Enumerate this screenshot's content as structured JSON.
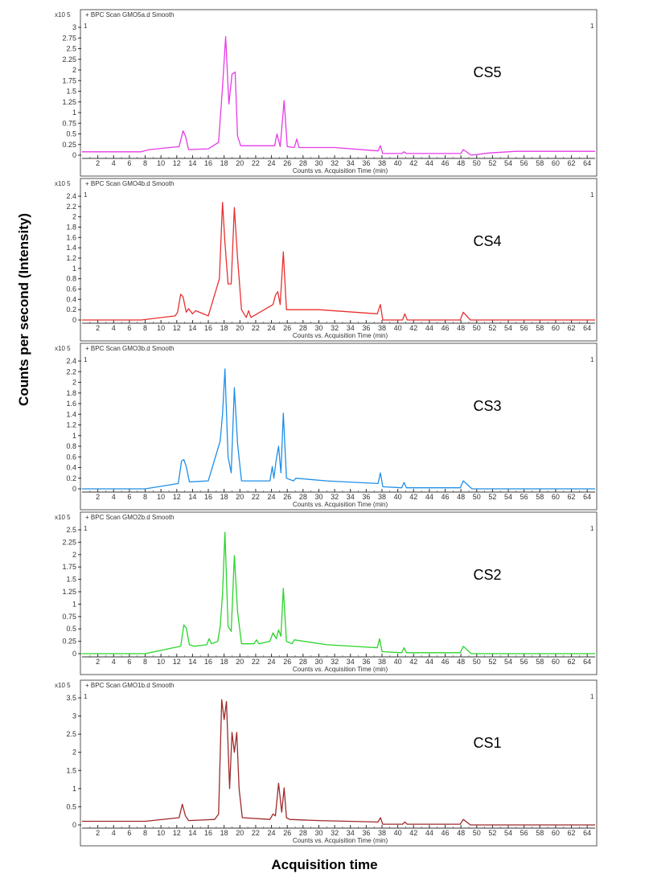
{
  "figure": {
    "y_axis_label": "Counts per second (Intensity)",
    "x_axis_label": "Acquisition time"
  },
  "chart_data": [
    {
      "type": "line",
      "title": "BPC Scan GMO5a.d  Smooth",
      "sample_label": "CS5",
      "corner_label": "1",
      "scale_label": "x10 5",
      "color": "#e63be6",
      "xlabel": "Counts vs. Acquisition Time (min)",
      "xlim": [
        0,
        65
      ],
      "ylim": [
        0,
        3
      ],
      "yticks": [
        0,
        0.25,
        0.5,
        0.75,
        1,
        1.25,
        1.5,
        1.75,
        2,
        2.25,
        2.5,
        2.75,
        3
      ],
      "ytick_labels": [
        "0",
        "0.25",
        "0.5",
        "0.75",
        "1",
        "1.25",
        "1.5",
        "1.75",
        "2",
        "2.25",
        "2.5",
        "2.75",
        "3"
      ],
      "xticks": [
        2,
        4,
        6,
        8,
        10,
        12,
        14,
        16,
        18,
        20,
        22,
        24,
        26,
        28,
        30,
        32,
        34,
        36,
        38,
        40,
        42,
        44,
        46,
        48,
        50,
        52,
        54,
        56,
        58,
        60,
        62,
        64
      ],
      "x": [
        0,
        7.5,
        8.5,
        12.3,
        12.8,
        13.1,
        13.5,
        16,
        17.3,
        17.8,
        18.2,
        18.6,
        19.0,
        19.4,
        19.7,
        20.1,
        24.4,
        24.7,
        25.1,
        25.6,
        26.0,
        26.9,
        27.2,
        27.5,
        32,
        37.5,
        37.8,
        38.1,
        40.5,
        40.8,
        41.1,
        48.0,
        48.3,
        49.3,
        51.5,
        55,
        65
      ],
      "y": [
        0.08,
        0.08,
        0.13,
        0.2,
        0.57,
        0.45,
        0.13,
        0.15,
        0.3,
        1.6,
        2.78,
        1.2,
        1.9,
        1.95,
        0.45,
        0.22,
        0.22,
        0.5,
        0.2,
        1.28,
        0.2,
        0.18,
        0.38,
        0.18,
        0.18,
        0.1,
        0.22,
        0.04,
        0.04,
        0.08,
        0.04,
        0.04,
        0.13,
        0.0,
        0.05,
        0.09,
        0.09
      ]
    },
    {
      "type": "line",
      "title": "BPC Scan GMO4b.d  Smooth",
      "sample_label": "CS4",
      "corner_label": "1",
      "scale_label": "x10 5",
      "color": "#e83030",
      "xlabel": "Counts vs. Acquisition Time (min)",
      "xlim": [
        0,
        65
      ],
      "ylim": [
        0,
        2.4
      ],
      "yticks": [
        0,
        0.2,
        0.4,
        0.6,
        0.8,
        1,
        1.2,
        1.4,
        1.6,
        1.8,
        2,
        2.2,
        2.4
      ],
      "ytick_labels": [
        "0",
        "0.2",
        "0.4",
        "0.6",
        "0.8",
        "1",
        "1.2",
        "1.4",
        "1.6",
        "1.8",
        "2",
        "2.2",
        "2.4"
      ],
      "xticks": [
        2,
        4,
        6,
        8,
        10,
        12,
        14,
        16,
        18,
        20,
        22,
        24,
        26,
        28,
        30,
        32,
        34,
        36,
        38,
        40,
        42,
        44,
        46,
        48,
        50,
        52,
        54,
        56,
        58,
        60,
        62,
        64
      ],
      "x": [
        0,
        7.5,
        11.8,
        12.1,
        12.5,
        12.8,
        13.2,
        13.5,
        14.0,
        14.4,
        16,
        17.4,
        17.8,
        18.1,
        18.5,
        18.9,
        19.3,
        19.7,
        20.2,
        20.8,
        21.1,
        21.4,
        24.2,
        24.5,
        24.8,
        25.1,
        25.5,
        25.9,
        30,
        37.4,
        37.8,
        38.1,
        40.6,
        40.9,
        41.2,
        47.9,
        48.3,
        49.2,
        51,
        65
      ],
      "y": [
        0.0,
        0.0,
        0.08,
        0.15,
        0.5,
        0.45,
        0.15,
        0.22,
        0.12,
        0.18,
        0.08,
        0.8,
        2.28,
        1.5,
        0.7,
        0.7,
        2.18,
        1.2,
        0.2,
        0.05,
        0.18,
        0.05,
        0.3,
        0.48,
        0.55,
        0.3,
        1.32,
        0.2,
        0.2,
        0.12,
        0.3,
        0.0,
        0.0,
        0.12,
        0.0,
        0.0,
        0.15,
        0.0,
        0.0,
        0.0
      ]
    },
    {
      "type": "line",
      "title": "BPC Scan GMO3b.d  Smooth",
      "sample_label": "CS3",
      "corner_label": "1",
      "scale_label": "x10 5",
      "color": "#1f8fe8",
      "xlabel": "Counts vs. Acquisition Time (min)",
      "xlim": [
        0,
        65
      ],
      "ylim": [
        0,
        2.4
      ],
      "yticks": [
        0,
        0.2,
        0.4,
        0.6,
        0.8,
        1,
        1.2,
        1.4,
        1.6,
        1.8,
        2,
        2.2,
        2.4
      ],
      "ytick_labels": [
        "0",
        "0.2",
        "0.4",
        "0.6",
        "0.8",
        "1",
        "1.2",
        "1.4",
        "1.6",
        "1.8",
        "2",
        "2.2",
        "2.4"
      ],
      "xticks": [
        2,
        4,
        6,
        8,
        10,
        12,
        14,
        16,
        18,
        20,
        22,
        24,
        26,
        28,
        30,
        32,
        34,
        36,
        38,
        40,
        42,
        44,
        46,
        48,
        50,
        52,
        54,
        56,
        58,
        60,
        62,
        64
      ],
      "x": [
        0,
        8,
        12.2,
        12.6,
        12.9,
        13.2,
        13.6,
        16,
        17.5,
        17.8,
        18.1,
        18.5,
        18.9,
        19.3,
        19.7,
        20.2,
        23.8,
        24.1,
        24.3,
        24.6,
        24.9,
        25.2,
        25.5,
        25.9,
        26.8,
        27.1,
        31,
        37.5,
        37.8,
        38.1,
        40.5,
        40.8,
        41.1,
        47.9,
        48.3,
        49.4,
        51,
        65
      ],
      "y": [
        0.0,
        0.0,
        0.1,
        0.52,
        0.55,
        0.42,
        0.13,
        0.15,
        0.9,
        1.4,
        2.25,
        0.6,
        0.3,
        1.9,
        0.85,
        0.15,
        0.15,
        0.42,
        0.2,
        0.55,
        0.8,
        0.3,
        1.42,
        0.2,
        0.15,
        0.2,
        0.15,
        0.1,
        0.3,
        0.04,
        0.02,
        0.12,
        0.02,
        0.02,
        0.15,
        0.0,
        0.0,
        0.0
      ]
    },
    {
      "type": "line",
      "title": "BPC Scan GMO2b.d  Smooth",
      "sample_label": "CS2",
      "corner_label": "1",
      "scale_label": "x10 5",
      "color": "#2ad42a",
      "xlabel": "Counts vs. Acquisition Time (min)",
      "xlim": [
        0,
        65
      ],
      "ylim": [
        0,
        2.5
      ],
      "yticks": [
        0,
        0.25,
        0.5,
        0.75,
        1,
        1.25,
        1.5,
        1.75,
        2,
        2.25,
        2.5
      ],
      "ytick_labels": [
        "0",
        "0.25",
        "0.5",
        "0.75",
        "1",
        "1.25",
        "1.5",
        "1.75",
        "2",
        "2.25",
        "2.5"
      ],
      "xticks": [
        2,
        4,
        6,
        8,
        10,
        12,
        14,
        16,
        18,
        20,
        22,
        24,
        26,
        28,
        30,
        32,
        34,
        36,
        38,
        40,
        42,
        44,
        46,
        48,
        50,
        52,
        54,
        56,
        58,
        60,
        62,
        64
      ],
      "x": [
        0,
        8,
        12.5,
        12.9,
        13.2,
        13.6,
        14.2,
        15.8,
        16.1,
        16.4,
        17.2,
        17.5,
        17.8,
        18.1,
        18.5,
        18.9,
        19.3,
        19.7,
        20.2,
        21.8,
        22.1,
        22.4,
        23.8,
        24.2,
        24.6,
        24.9,
        25.2,
        25.5,
        25.9,
        26.6,
        26.9,
        31,
        37.4,
        37.7,
        38.0,
        40.5,
        40.8,
        41.1,
        47.9,
        48.3,
        49.3,
        51,
        65
      ],
      "y": [
        0.0,
        0.0,
        0.15,
        0.58,
        0.52,
        0.18,
        0.15,
        0.18,
        0.3,
        0.2,
        0.25,
        0.55,
        1.2,
        2.45,
        0.55,
        0.45,
        1.98,
        0.85,
        0.2,
        0.2,
        0.28,
        0.2,
        0.25,
        0.42,
        0.3,
        0.48,
        0.35,
        1.32,
        0.25,
        0.2,
        0.28,
        0.18,
        0.12,
        0.3,
        0.04,
        0.02,
        0.12,
        0.02,
        0.02,
        0.15,
        0.0,
        0.0,
        0.0
      ]
    },
    {
      "type": "line",
      "title": "BPC Scan GMO1b.d  Smooth",
      "sample_label": "CS1",
      "corner_label": "1",
      "scale_label": "x10 5",
      "color": "#9e2a2a",
      "xlabel": "Counts vs. Acquisition Time (min)",
      "xlim": [
        0,
        65
      ],
      "ylim": [
        0,
        3.5
      ],
      "yticks": [
        0,
        0.5,
        1,
        1.5,
        2,
        2.5,
        3,
        3.5
      ],
      "ytick_labels": [
        "0",
        "0.5",
        "1",
        "1.5",
        "2",
        "2.5",
        "3",
        "3.5"
      ],
      "xticks": [
        2,
        4,
        6,
        8,
        10,
        12,
        14,
        16,
        18,
        20,
        22,
        24,
        26,
        28,
        30,
        32,
        34,
        36,
        38,
        40,
        42,
        44,
        46,
        48,
        50,
        52,
        54,
        56,
        58,
        60,
        62,
        64
      ],
      "x": [
        0,
        8,
        12.3,
        12.7,
        13.1,
        13.5,
        16.8,
        17.3,
        17.7,
        18.0,
        18.3,
        18.7,
        19.0,
        19.3,
        19.6,
        19.9,
        20.3,
        23.8,
        24.2,
        24.5,
        24.9,
        25.3,
        25.6,
        25.9,
        26.3,
        30,
        37.5,
        37.8,
        38.1,
        40.6,
        40.9,
        41.2,
        47.9,
        48.3,
        49.2,
        51,
        65
      ],
      "y": [
        0.1,
        0.1,
        0.2,
        0.57,
        0.25,
        0.12,
        0.15,
        0.3,
        3.45,
        2.9,
        3.4,
        1.0,
        2.55,
        2.0,
        2.55,
        1.0,
        0.2,
        0.15,
        0.3,
        0.25,
        1.15,
        0.35,
        1.02,
        0.2,
        0.15,
        0.12,
        0.08,
        0.2,
        0.02,
        0.02,
        0.08,
        0.02,
        0.02,
        0.15,
        0.0,
        0.0,
        0.0
      ]
    }
  ]
}
